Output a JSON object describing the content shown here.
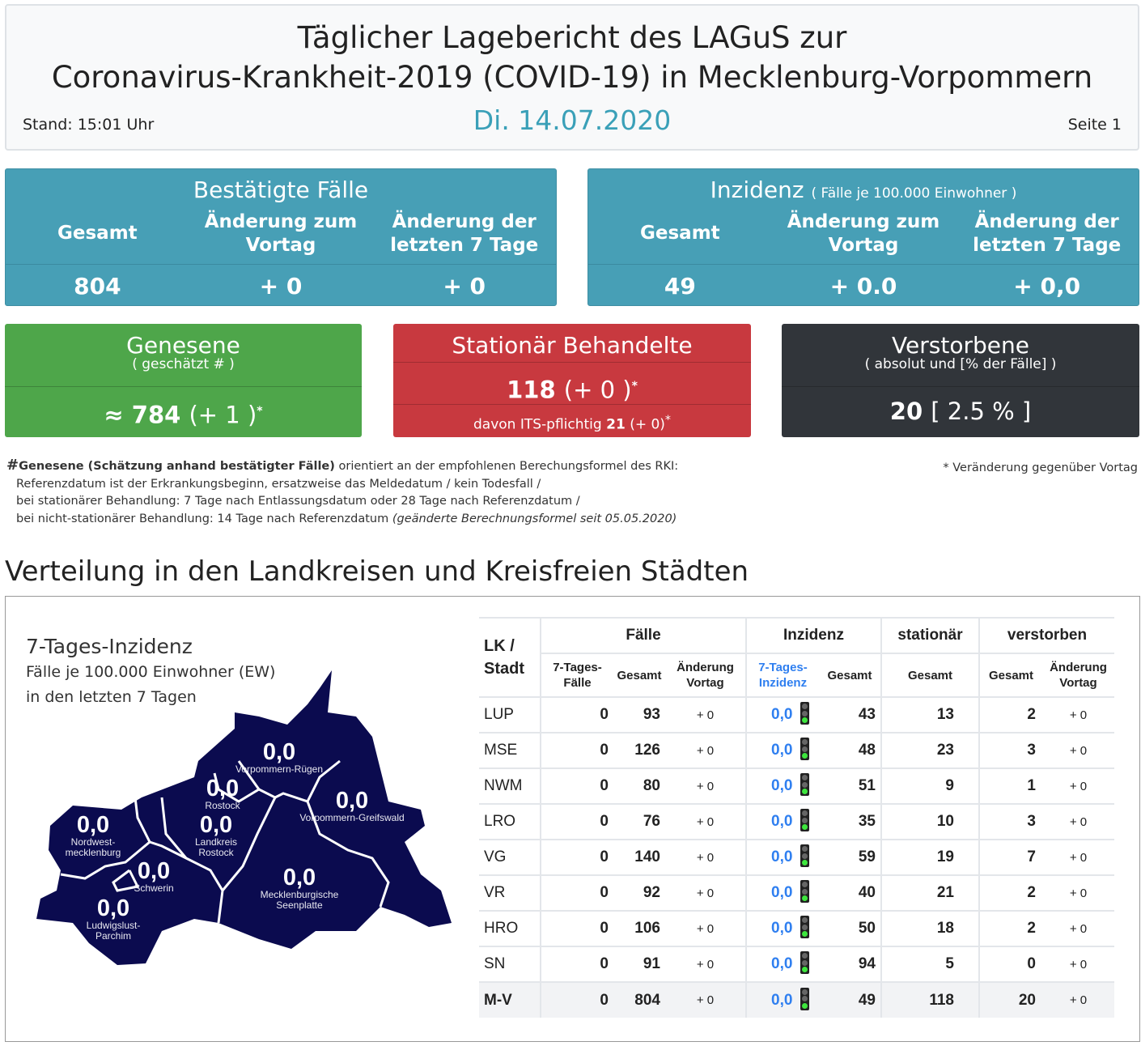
{
  "header": {
    "title_line1": "Täglicher Lagebericht des LAGuS zur",
    "title_line2": "Coronavirus-Krankheit-2019 (COVID-19) in Mecklenburg-Vorpommern",
    "date": "Di. 14.07.2020",
    "stand": "Stand: 15:01 Uhr",
    "page": "Seite 1"
  },
  "cases": {
    "title": "Bestätigte Fälle",
    "cols": [
      "Gesamt",
      "Änderung zum Vortag",
      "Änderung der letzten 7 Tage"
    ],
    "values": [
      "804",
      "+ 0",
      "+ 0"
    ]
  },
  "incidence": {
    "title": "Inzidenz",
    "subtitle": "( Fälle je 100.000 Einwohner )",
    "cols": [
      "Gesamt",
      "Änderung zum Vortag",
      "Änderung der letzten 7 Tage"
    ],
    "values": [
      "49",
      "+ 0.0",
      "+ 0,0"
    ]
  },
  "recovered": {
    "title": "Genesene",
    "subtitle": "( geschätzt # )",
    "value": "≈ 784",
    "change": "(+ 1 )",
    "star": "*"
  },
  "hospital": {
    "title": "Stationär Behandelte",
    "value": "118",
    "change": "(+ 0 )",
    "star": "*",
    "its_label": "davon ITS-pflichtig",
    "its_value": "21",
    "its_change": "(+ 0)"
  },
  "deaths": {
    "title": "Verstorbene",
    "subtitle": "( absolut und [% der Fälle] )",
    "value": "20",
    "percent": "[ 2.5 % ]"
  },
  "footnote": {
    "hash": "#",
    "bold": "Genesene (Schätzung anhand bestätigter Fälle)",
    "line1": " orientiert an der empfohlenen Berechungsformel des RKI:",
    "line2": "Referenzdatum ist der Erkrankungsbeginn, ersatzweise das Meldedatum / kein Todesfall /",
    "line3": "bei stationärer Behandlung: 7 Tage nach Entlassungsdatum oder 28 Tage nach Referenzdatum /",
    "line4": "bei nicht-stationärer Behandlung: 14 Tage nach Referenzdatum ",
    "line4_italic": "(geänderte Berechnungsformel seit 05.05.2020)",
    "star_note": "* Veränderung gegenüber Vortag"
  },
  "section_title": "Verteilung in den Landkreisen und Kreisfreien Städten",
  "map": {
    "title": "7-Tages-Inzidenz",
    "sub1": "Fälle je 100.000 Einwohner (EW)",
    "sub2": "in den letzten 7 Tagen",
    "color": "#0b0b4f",
    "regions": [
      {
        "value": "0,0",
        "name": "Vorpommern-Rügen"
      },
      {
        "value": "0,0",
        "name": "Rostock"
      },
      {
        "value": "0,0",
        "name": "Vorpommern-Greifswald"
      },
      {
        "value": "0,0",
        "name": "Nordwest-mecklenburg"
      },
      {
        "value": "0,0",
        "name": "Landkreis Rostock"
      },
      {
        "value": "0,0",
        "name": "Schwerin"
      },
      {
        "value": "0,0",
        "name": "Mecklenburgische Seenplatte"
      },
      {
        "value": "0,0",
        "name": "Ludwigslust-Parchim"
      }
    ]
  },
  "table": {
    "groups": [
      "LK / Stadt",
      "Fälle",
      "Inzidenz",
      "stationär",
      "verstorben"
    ],
    "sub": [
      "7-Tages-Fälle",
      "Gesamt",
      "Änderung Vortag",
      "7-Tages-Inzidenz",
      "Gesamt",
      "Gesamt",
      "Gesamt",
      "Änderung Vortag"
    ],
    "rows": [
      [
        "LUP",
        "0",
        "93",
        "+ 0",
        "0,0",
        "43",
        "13",
        "2",
        "+ 0"
      ],
      [
        "MSE",
        "0",
        "126",
        "+ 0",
        "0,0",
        "48",
        "23",
        "3",
        "+ 0"
      ],
      [
        "NWM",
        "0",
        "80",
        "+ 0",
        "0,0",
        "51",
        "9",
        "1",
        "+ 0"
      ],
      [
        "LRO",
        "0",
        "76",
        "+ 0",
        "0,0",
        "35",
        "10",
        "3",
        "+ 0"
      ],
      [
        "VG",
        "0",
        "140",
        "+ 0",
        "0,0",
        "59",
        "19",
        "7",
        "+ 0"
      ],
      [
        "VR",
        "0",
        "92",
        "+ 0",
        "0,0",
        "40",
        "21",
        "2",
        "+ 0"
      ],
      [
        "HRO",
        "0",
        "106",
        "+ 0",
        "0,0",
        "50",
        "18",
        "2",
        "+ 0"
      ],
      [
        "SN",
        "0",
        "91",
        "+ 0",
        "0,0",
        "94",
        "5",
        "0",
        "+ 0"
      ],
      [
        "M-V",
        "0",
        "804",
        "+ 0",
        "0,0",
        "49",
        "118",
        "20",
        "+ 0"
      ]
    ],
    "traffic_light": "green"
  }
}
